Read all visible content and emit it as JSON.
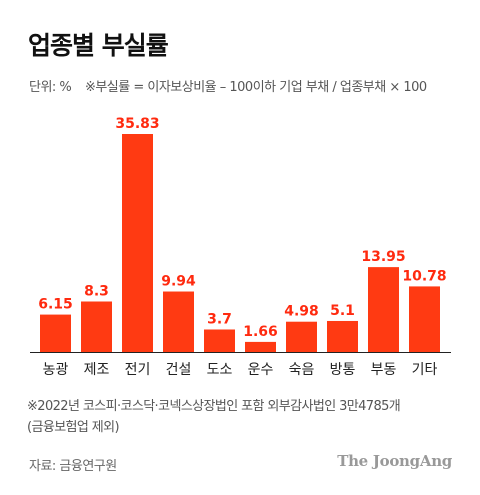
{
  "header": {
    "title": "업종별 부실률",
    "unit": "단위: %",
    "definition": "※부실률 = 이자보상비율 – 100이하 기업 부채 / 업종부채 × 100"
  },
  "chart_data": {
    "type": "bar",
    "categories": [
      "농광",
      "제조",
      "전기",
      "건설",
      "도소",
      "운수",
      "숙음",
      "방통",
      "부동",
      "기타"
    ],
    "values": [
      6.15,
      8.3,
      35.83,
      9.94,
      3.7,
      1.66,
      4.98,
      5.1,
      13.95,
      10.78
    ],
    "value_labels": [
      "6.15",
      "8.3",
      "35.83",
      "9.94",
      "3.7",
      "1.66",
      "4.98",
      "5.1",
      "13.95",
      "10.78"
    ],
    "title": "업종별 부실률",
    "ylim": [
      0,
      35.83
    ],
    "grid": false,
    "bar_color": "#ff3a12",
    "label_color": "#ff2a0f"
  },
  "footnote": {
    "line1": "※2022년 코스피·코스닥·코넥스상장법인 포함 외부감사법인 3만4785개",
    "line2": "(금융보험업 제외)"
  },
  "source": "자료: 금융연구원",
  "brand": "The JoongAng"
}
